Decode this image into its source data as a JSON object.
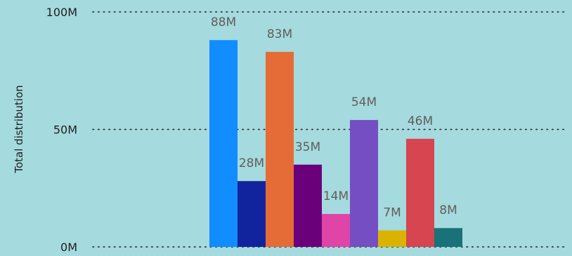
{
  "chart_data": {
    "type": "bar",
    "ylabel": "Total distribution",
    "xlabel": "",
    "ylim": [
      0,
      100000000
    ],
    "yticks": [
      {
        "value": 0,
        "label": "0M"
      },
      {
        "value": 50000000,
        "label": "50M"
      },
      {
        "value": 100000000,
        "label": "100M"
      }
    ],
    "grid": true,
    "series": [
      {
        "values": [
          88000000
        ],
        "label": "88M",
        "color": "#118dff"
      },
      {
        "values": [
          28000000
        ],
        "label": "28M",
        "color": "#12239e"
      },
      {
        "values": [
          83000000
        ],
        "label": "83M",
        "color": "#e66c37"
      },
      {
        "values": [
          35000000
        ],
        "label": "35M",
        "color": "#6b007b"
      },
      {
        "values": [
          14000000
        ],
        "label": "14M",
        "color": "#e044a7"
      },
      {
        "values": [
          54000000
        ],
        "label": "54M",
        "color": "#744ec2"
      },
      {
        "values": [
          7000000
        ],
        "label": "7M",
        "color": "#d9b300"
      },
      {
        "values": [
          46000000
        ],
        "label": "46M",
        "color": "#d64550"
      },
      {
        "values": [
          8000000
        ],
        "label": "8M",
        "color": "#197278"
      }
    ]
  }
}
